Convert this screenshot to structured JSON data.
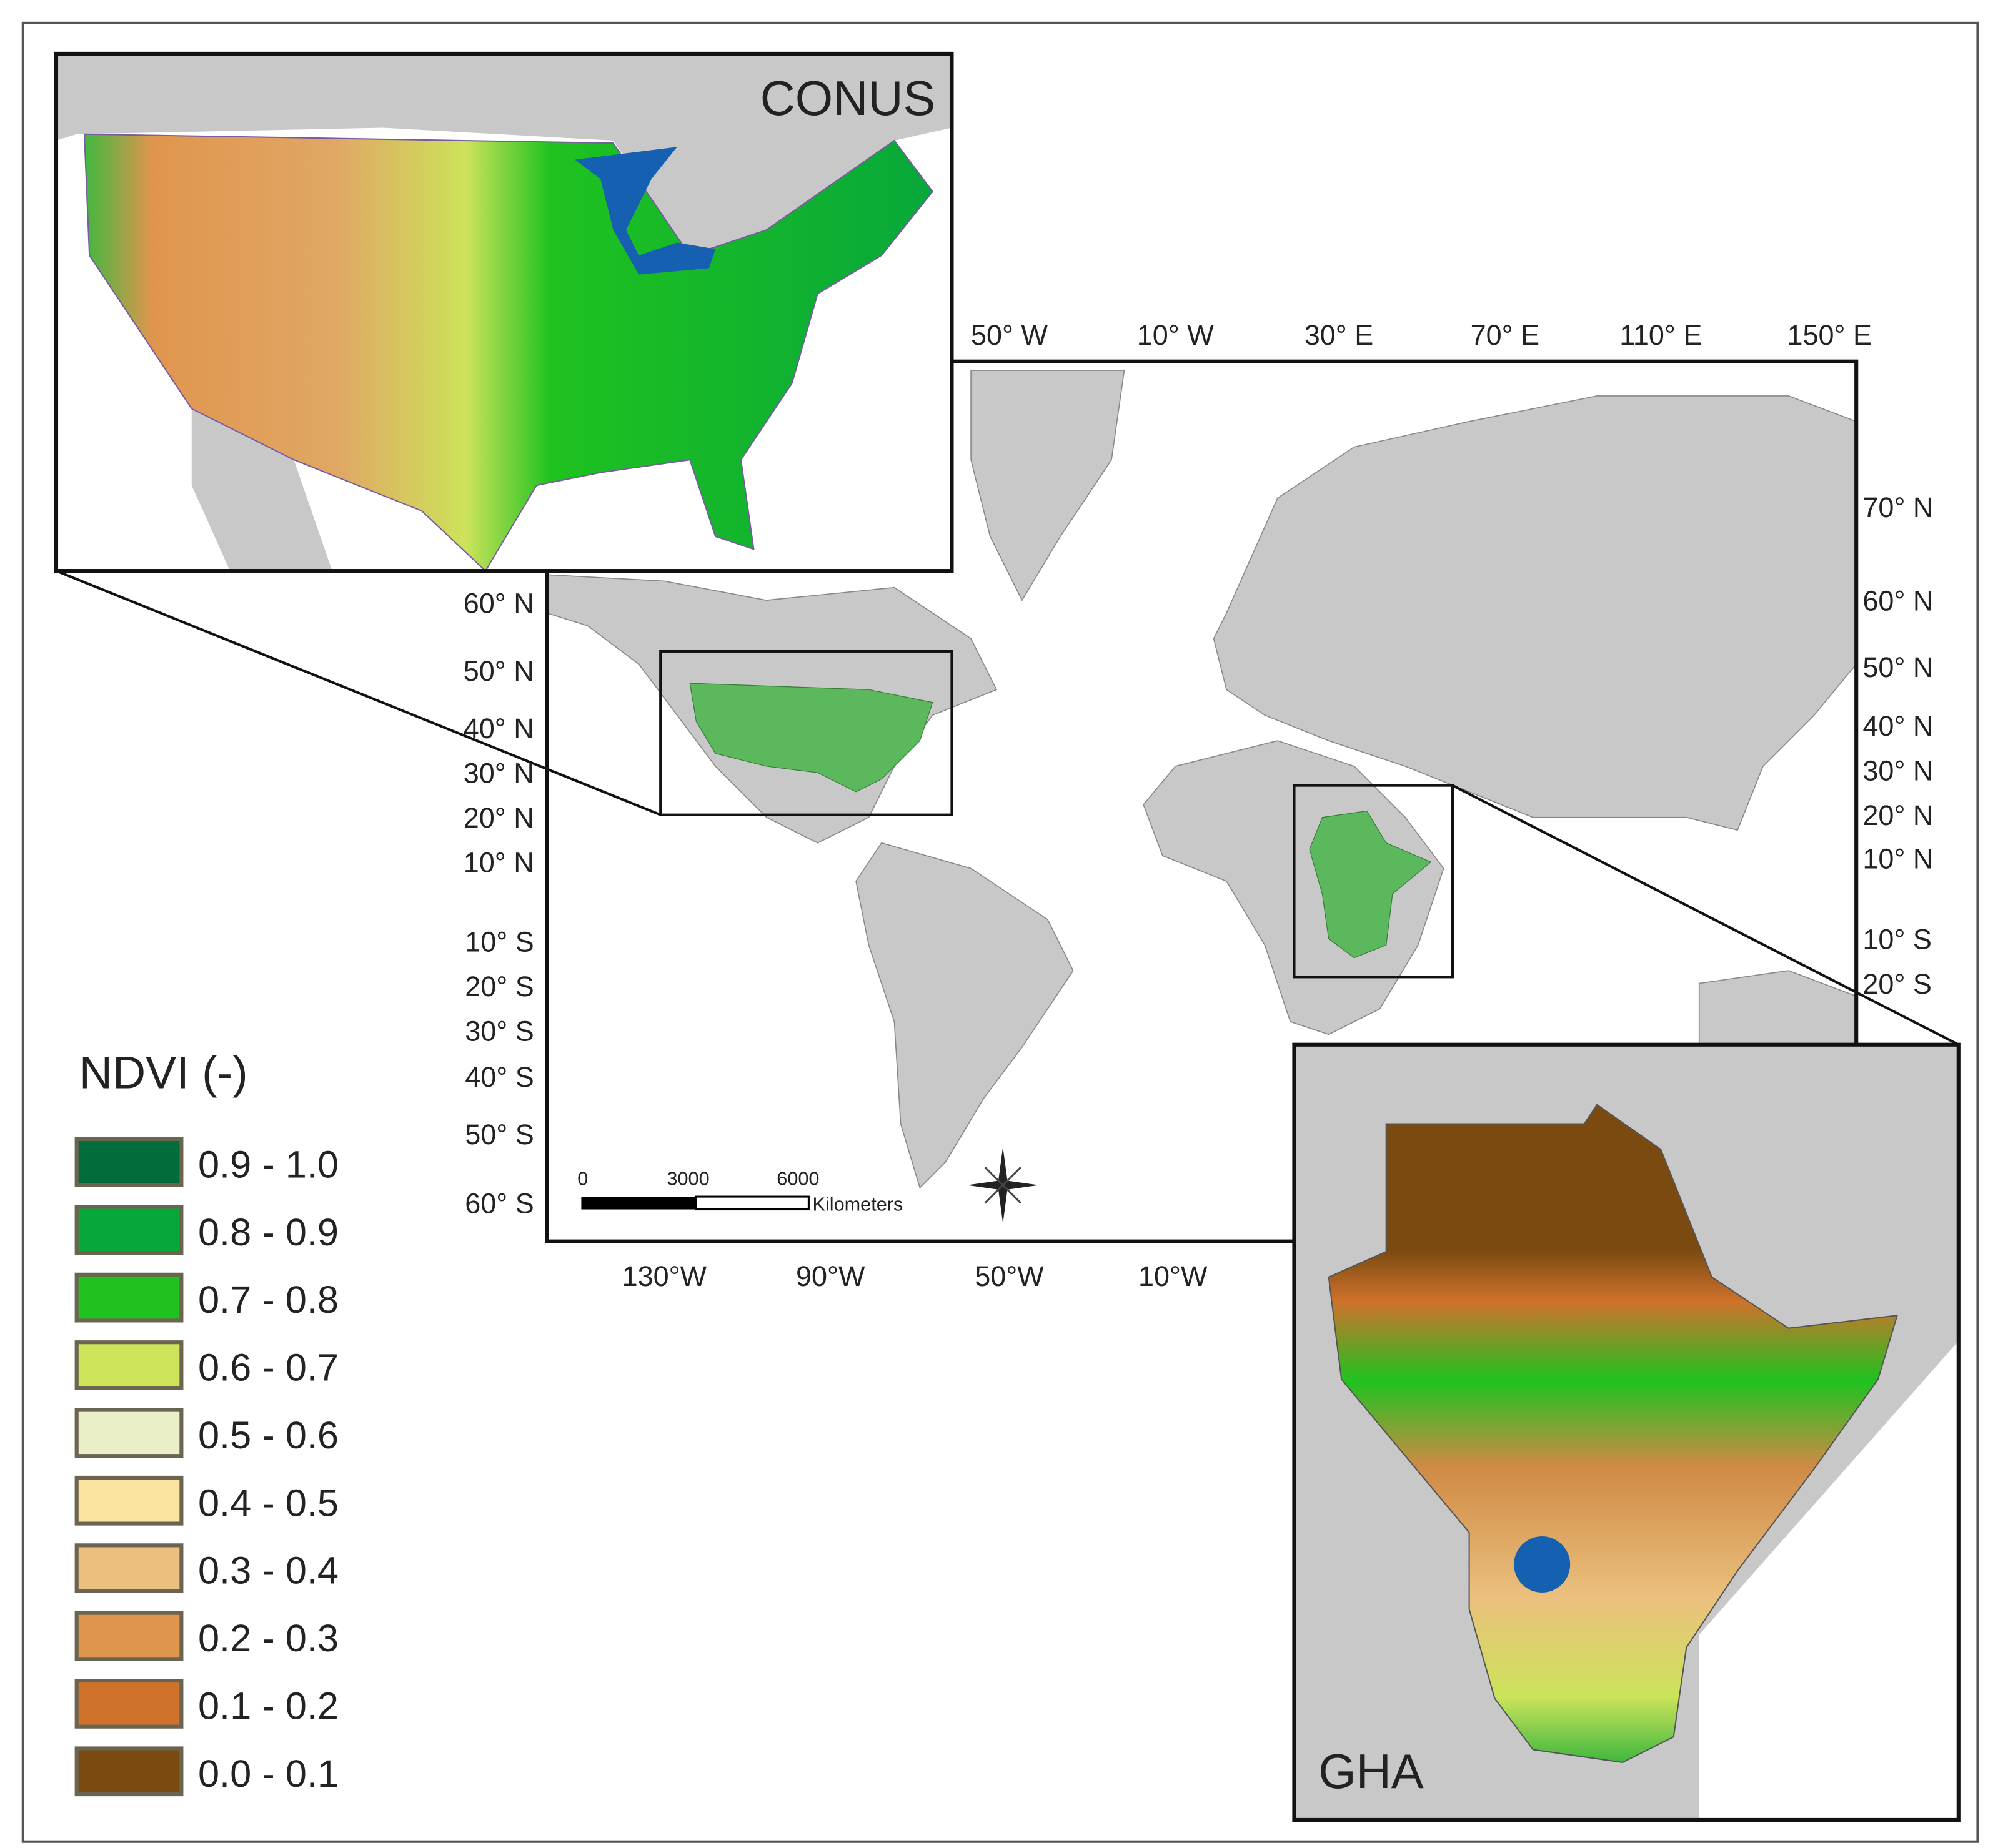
{
  "insets": {
    "conus": {
      "label": "CONUS"
    },
    "gha": {
      "label": "GHA"
    }
  },
  "world_map": {
    "top_longitudes": [
      "50° W",
      "10° W",
      "30° E",
      "70° E",
      "110° E",
      "150° E"
    ],
    "bottom_longitudes": [
      "130°W",
      "90°W",
      "50°W",
      "10°W"
    ],
    "left_latitudes": [
      "60° N",
      "50° N",
      "40° N",
      "30° N",
      "20° N",
      "10° N",
      "10° S",
      "20° S",
      "30° S",
      "40° S",
      "50° S",
      "60° S"
    ],
    "right_latitudes": [
      "70° N",
      "60° N",
      "50° N",
      "40° N",
      "30° N",
      "20° N",
      "10° N",
      "10° S",
      "20° S"
    ],
    "highlight_color": "#5cb85c",
    "land_color": "#c8c8c8"
  },
  "scale_bar": {
    "ticks": [
      "0",
      "3000",
      "6000"
    ],
    "unit": "Kilometers"
  },
  "compass": {
    "icon": "north-arrow-compass-rose"
  },
  "legend": {
    "title": "NDVI (-)",
    "items": [
      {
        "label": "0.9 - 1.0",
        "color": "#006d3a"
      },
      {
        "label": "0.8 - 0.9",
        "color": "#07a83a"
      },
      {
        "label": "0.7 - 0.8",
        "color": "#1fc21f"
      },
      {
        "label": "0.6 - 0.7",
        "color": "#cce35a"
      },
      {
        "label": "0.5 - 0.6",
        "color": "#eaefc8"
      },
      {
        "label": "0.4 - 0.5",
        "color": "#fbe3a0"
      },
      {
        "label": "0.3 - 0.4",
        "color": "#ebc07e"
      },
      {
        "label": "0.2 - 0.3",
        "color": "#e0954e"
      },
      {
        "label": "0.1 - 0.2",
        "color": "#cf722c"
      },
      {
        "label": "0.0 - 0.1",
        "color": "#7a4a10"
      }
    ]
  }
}
